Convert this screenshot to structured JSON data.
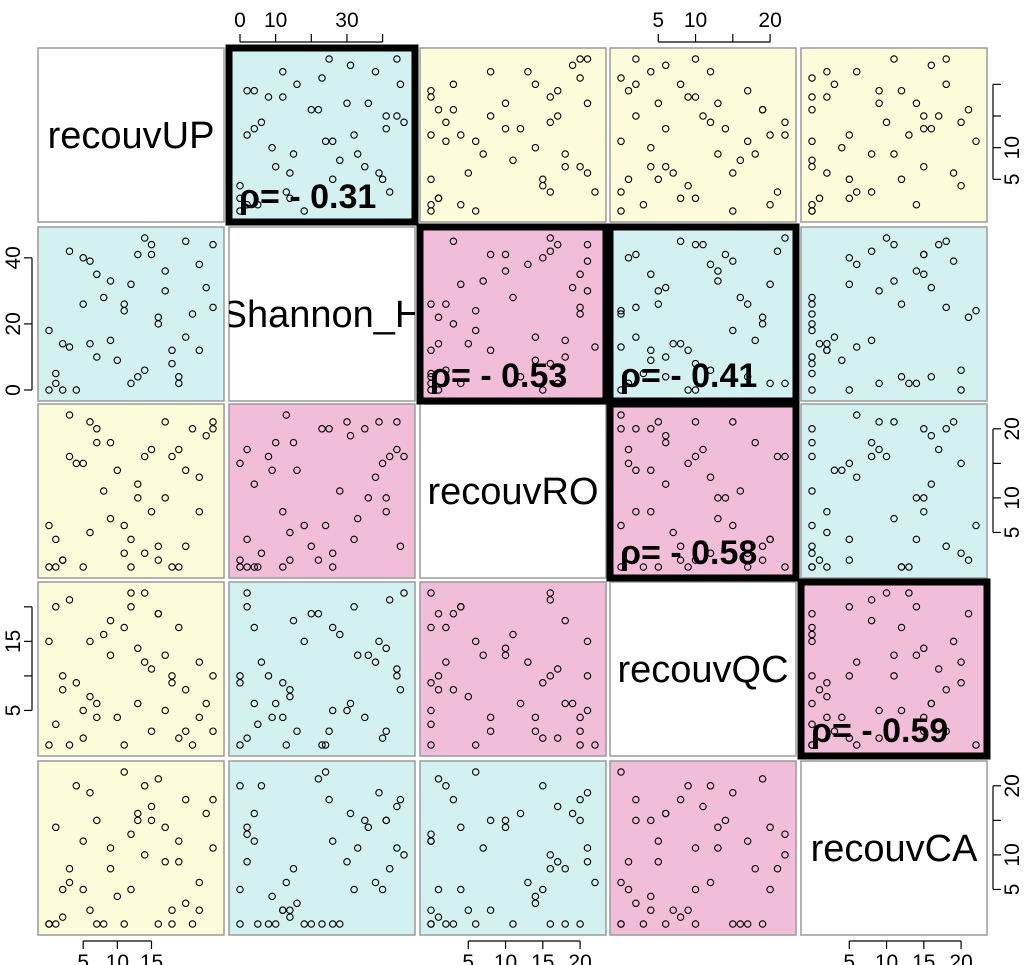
{
  "chart_data": {
    "type": "scatter",
    "subtype": "scatterplot-matrix",
    "variables": [
      "recouvUP",
      "Shannon_H",
      "recouvRO",
      "recouvQC",
      "recouvCA"
    ],
    "colors": {
      "weak": "#FCFCDA",
      "moderate": "#D3F1F1",
      "strong": "#F2BDD9",
      "point": "#000000",
      "frame": "#9a9a9a",
      "highlight": "#000000"
    },
    "cell_colors": [
      [
        "none",
        "moderate",
        "weak",
        "weak",
        "weak"
      ],
      [
        "moderate",
        "none",
        "strong",
        "moderate",
        "moderate"
      ],
      [
        "weak",
        "strong",
        "none",
        "strong",
        "moderate"
      ],
      [
        "weak",
        "moderate",
        "strong",
        "none",
        "strong"
      ],
      [
        "weak",
        "moderate",
        "moderate",
        "strong",
        "none"
      ]
    ],
    "correlations": [
      {
        "row": 0,
        "col": 1,
        "label": "ρ= - 0.31"
      },
      {
        "row": 1,
        "col": 2,
        "label": "ρ= - 0.53"
      },
      {
        "row": 1,
        "col": 3,
        "label": "ρ= - 0.41"
      },
      {
        "row": 2,
        "col": 3,
        "label": "ρ= - 0.58"
      },
      {
        "row": 3,
        "col": 4,
        "label": "ρ= - 0.59"
      }
    ],
    "ranges": [
      [
        0,
        24
      ],
      [
        0,
        46
      ],
      [
        0,
        22
      ],
      [
        0,
        22
      ],
      [
        0,
        22
      ]
    ],
    "axes": {
      "top": [
        {
          "col": 1,
          "ticks": [
            0,
            10,
            20,
            30,
            40
          ],
          "labels": [
            "0",
            "10",
            "",
            "30",
            ""
          ]
        },
        {
          "col": 3,
          "ticks": [
            5,
            10,
            15,
            20
          ],
          "labels": [
            "5",
            "10",
            "",
            "20"
          ]
        }
      ],
      "left": [
        {
          "row": 1,
          "ticks": [
            0,
            20,
            40
          ],
          "labels": [
            "0",
            "20",
            "40"
          ]
        },
        {
          "row": 3,
          "ticks": [
            5,
            10,
            15,
            20
          ],
          "labels": [
            "5",
            "",
            "15",
            ""
          ]
        }
      ],
      "right": [
        {
          "row": 0,
          "ticks": [
            5,
            10,
            15,
            20
          ],
          "labels": [
            "5",
            "10",
            "",
            ""
          ]
        },
        {
          "row": 2,
          "ticks": [
            5,
            10,
            15,
            20
          ],
          "labels": [
            "5",
            "10",
            "",
            "20"
          ]
        },
        {
          "row": 4,
          "ticks": [
            5,
            10,
            15,
            20
          ],
          "labels": [
            "5",
            "10",
            "",
            "20"
          ]
        }
      ],
      "bottom": [
        {
          "col": 0,
          "ticks": [
            5,
            10,
            15
          ],
          "labels": [
            "5",
            "10",
            "15"
          ]
        },
        {
          "col": 2,
          "ticks": [
            5,
            10,
            15,
            20
          ],
          "labels": [
            "5",
            "10",
            "15",
            "20"
          ]
        },
        {
          "col": 4,
          "ticks": [
            5,
            10,
            15,
            20
          ],
          "labels": [
            "5",
            "10",
            "15",
            "20"
          ]
        }
      ]
    },
    "observations": [
      [
        0,
        0,
        0,
        0,
        0
      ],
      [
        1,
        5,
        0,
        3,
        0
      ],
      [
        2,
        0,
        1,
        10,
        5
      ],
      [
        3,
        13,
        22,
        0,
        6
      ],
      [
        4,
        0,
        15,
        9,
        20
      ],
      [
        5,
        26,
        0,
        5,
        12
      ],
      [
        6,
        14,
        5,
        7,
        2
      ],
      [
        7,
        35,
        20,
        4,
        15
      ],
      [
        8,
        28,
        11,
        16,
        0
      ],
      [
        9,
        15,
        18,
        18,
        8
      ],
      [
        10,
        9,
        14,
        4,
        4
      ],
      [
        11,
        24,
        6,
        0,
        22
      ],
      [
        12,
        32,
        4,
        20,
        5
      ],
      [
        13,
        41,
        10,
        14,
        15
      ],
      [
        14,
        46,
        16,
        22,
        10
      ],
      [
        15,
        41,
        8,
        2,
        15
      ],
      [
        16,
        20,
        3,
        19,
        0
      ],
      [
        17,
        36,
        10,
        13,
        14
      ],
      [
        18,
        12,
        0,
        9,
        2
      ],
      [
        19,
        2,
        17,
        1,
        9
      ],
      [
        20,
        45,
        3,
        8,
        18
      ],
      [
        21,
        23,
        20,
        0,
        0
      ],
      [
        22,
        38,
        13,
        12,
        6
      ],
      [
        23,
        31,
        19,
        6,
        16
      ],
      [
        24,
        44,
        21,
        10,
        11
      ],
      [
        3,
        42,
        16,
        21,
        8
      ],
      [
        7,
        10,
        18,
        6,
        0
      ],
      [
        11,
        26,
        2,
        17,
        0
      ],
      [
        15,
        44,
        17,
        11,
        17
      ],
      [
        19,
        4,
        0,
        17,
        12
      ],
      [
        9,
        33,
        7,
        13,
        11
      ],
      [
        13,
        4,
        12,
        6,
        16
      ],
      [
        17,
        30,
        21,
        5,
        9
      ],
      [
        20,
        16,
        14,
        2,
        3
      ],
      [
        1,
        2,
        4,
        20,
        14
      ],
      [
        6,
        39,
        21,
        15,
        19
      ],
      [
        14,
        6,
        2,
        12,
        20
      ],
      [
        22,
        12,
        8,
        4,
        2
      ],
      [
        0,
        18,
        6,
        15,
        0
      ],
      [
        24,
        25,
        20,
        2,
        18
      ],
      [
        12,
        2,
        0,
        22,
        13
      ],
      [
        5,
        40,
        15,
        1,
        5
      ],
      [
        16,
        22,
        1,
        19,
        21
      ],
      [
        18,
        8,
        16,
        10,
        0
      ],
      [
        2,
        14,
        1,
        8,
        1
      ]
    ]
  }
}
